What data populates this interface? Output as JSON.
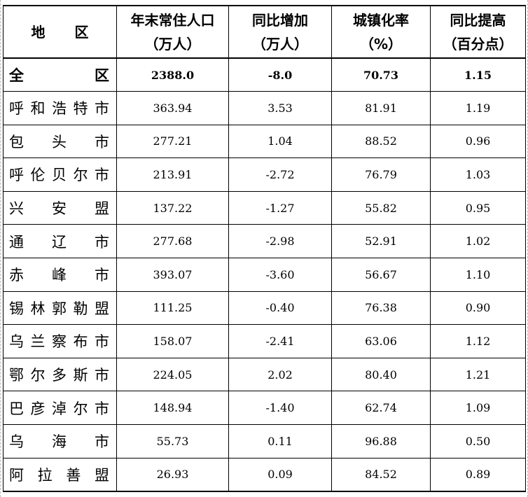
{
  "table": {
    "headers": [
      {
        "line1": "地　区",
        "line2": ""
      },
      {
        "line1": "年末常住人口",
        "line2": "（万人）"
      },
      {
        "line1": "同比增加",
        "line2": "（万人）"
      },
      {
        "line1": "城镇化率",
        "line2": "（%）"
      },
      {
        "line1": "同比提高",
        "line2": "（百分点）"
      }
    ],
    "rows": [
      {
        "region": "全区",
        "population": "2388.0",
        "increase": "-8.0",
        "urbanization": "70.73",
        "rise": "1.15"
      },
      {
        "region": "呼和浩特市",
        "population": "363.94",
        "increase": "3.53",
        "urbanization": "81.91",
        "rise": "1.19"
      },
      {
        "region": "包头市",
        "population": "277.21",
        "increase": "1.04",
        "urbanization": "88.52",
        "rise": "0.96"
      },
      {
        "region": "呼伦贝尔市",
        "population": "213.91",
        "increase": "-2.72",
        "urbanization": "76.79",
        "rise": "1.03"
      },
      {
        "region": "兴安盟",
        "population": "137.22",
        "increase": "-1.27",
        "urbanization": "55.82",
        "rise": "0.95"
      },
      {
        "region": "通辽市",
        "population": "277.68",
        "increase": "-2.98",
        "urbanization": "52.91",
        "rise": "1.02"
      },
      {
        "region": "赤峰市",
        "population": "393.07",
        "increase": "-3.60",
        "urbanization": "56.67",
        "rise": "1.10"
      },
      {
        "region": "锡林郭勒盟",
        "population": "111.25",
        "increase": "-0.40",
        "urbanization": "76.38",
        "rise": "0.90"
      },
      {
        "region": "乌兰察布市",
        "population": "158.07",
        "increase": "-2.41",
        "urbanization": "63.06",
        "rise": "1.12"
      },
      {
        "region": "鄂尔多斯市",
        "population": "224.05",
        "increase": "2.02",
        "urbanization": "80.40",
        "rise": "1.21"
      },
      {
        "region": "巴彦淖尔市",
        "population": "148.94",
        "increase": "-1.40",
        "urbanization": "62.74",
        "rise": "1.09"
      },
      {
        "region": "乌海市",
        "population": "55.73",
        "increase": "0.11",
        "urbanization": "96.88",
        "rise": "0.50"
      },
      {
        "region": "阿拉善盟",
        "population": "26.93",
        "increase": "0.09",
        "urbanization": "84.52",
        "rise": "0.89"
      }
    ]
  }
}
